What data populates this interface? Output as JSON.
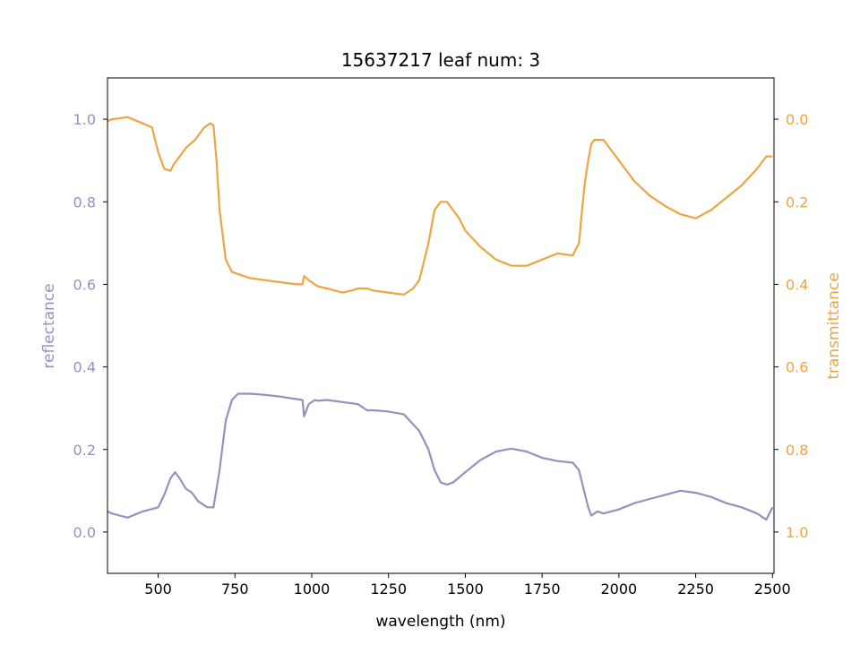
{
  "chart_data": {
    "type": "line",
    "title": "15637217 leaf num: 3",
    "xlabel": "wavelength (nm)",
    "ylabel_left": "reflectance",
    "ylabel_right": "transmittance",
    "xlim": [
      335,
      2505
    ],
    "ylim_left": [
      -0.1,
      1.1
    ],
    "ylim_right": [
      1.1,
      -0.1
    ],
    "right_axis_inverted": true,
    "grid": false,
    "x_ticks": [
      500,
      750,
      1000,
      1250,
      1500,
      1750,
      2000,
      2250,
      2500
    ],
    "y_ticks_left": [
      0.0,
      0.2,
      0.4,
      0.6,
      0.8,
      1.0
    ],
    "y_ticks_right": [
      0.0,
      0.2,
      0.4,
      0.6,
      0.8,
      1.0
    ],
    "colors": {
      "reflectance": "#9590c2",
      "transmittance": "#eda441"
    },
    "series": [
      {
        "key": "reflectance",
        "axis": "left",
        "x": [
          335,
          350,
          400,
          450,
          500,
          520,
          540,
          555,
          570,
          590,
          610,
          630,
          660,
          680,
          700,
          720,
          740,
          760,
          800,
          850,
          900,
          950,
          970,
          975,
          990,
          1010,
          1020,
          1050,
          1100,
          1150,
          1180,
          1200,
          1250,
          1300,
          1350,
          1380,
          1400,
          1420,
          1440,
          1460,
          1500,
          1550,
          1600,
          1650,
          1700,
          1750,
          1800,
          1850,
          1870,
          1880,
          1890,
          1900,
          1910,
          1930,
          1950,
          2000,
          2050,
          2100,
          2150,
          2200,
          2250,
          2300,
          2350,
          2400,
          2450,
          2480,
          2500
        ],
        "y": [
          0.05,
          0.045,
          0.035,
          0.05,
          0.06,
          0.09,
          0.13,
          0.145,
          0.13,
          0.105,
          0.095,
          0.075,
          0.06,
          0.06,
          0.15,
          0.27,
          0.32,
          0.335,
          0.335,
          0.332,
          0.328,
          0.322,
          0.32,
          0.28,
          0.31,
          0.32,
          0.318,
          0.32,
          0.315,
          0.31,
          0.295,
          0.295,
          0.292,
          0.285,
          0.245,
          0.2,
          0.15,
          0.12,
          0.115,
          0.12,
          0.145,
          0.175,
          0.195,
          0.202,
          0.195,
          0.18,
          0.172,
          0.168,
          0.15,
          0.12,
          0.09,
          0.06,
          0.04,
          0.05,
          0.045,
          0.055,
          0.07,
          0.08,
          0.09,
          0.1,
          0.095,
          0.085,
          0.07,
          0.06,
          0.045,
          0.03,
          0.06
        ]
      },
      {
        "key": "transmittance",
        "axis": "right",
        "x": [
          335,
          350,
          400,
          450,
          480,
          500,
          520,
          540,
          550,
          570,
          590,
          620,
          650,
          670,
          680,
          690,
          700,
          720,
          740,
          760,
          800,
          850,
          900,
          950,
          970,
          975,
          990,
          1010,
          1020,
          1050,
          1100,
          1130,
          1150,
          1180,
          1200,
          1250,
          1300,
          1330,
          1350,
          1380,
          1400,
          1420,
          1440,
          1460,
          1480,
          1500,
          1550,
          1600,
          1650,
          1700,
          1750,
          1800,
          1850,
          1870,
          1880,
          1890,
          1900,
          1910,
          1920,
          1950,
          2000,
          2050,
          2100,
          2150,
          2200,
          2250,
          2300,
          2350,
          2400,
          2450,
          2480,
          2500
        ],
        "y": [
          0.005,
          0.0,
          -0.005,
          0.01,
          0.02,
          0.08,
          0.12,
          0.125,
          0.11,
          0.09,
          0.07,
          0.05,
          0.02,
          0.01,
          0.015,
          0.1,
          0.22,
          0.34,
          0.37,
          0.375,
          0.385,
          0.39,
          0.395,
          0.4,
          0.4,
          0.38,
          0.39,
          0.4,
          0.405,
          0.41,
          0.42,
          0.415,
          0.41,
          0.41,
          0.415,
          0.42,
          0.425,
          0.41,
          0.39,
          0.3,
          0.22,
          0.2,
          0.2,
          0.22,
          0.24,
          0.27,
          0.31,
          0.34,
          0.355,
          0.355,
          0.34,
          0.325,
          0.33,
          0.3,
          0.22,
          0.15,
          0.1,
          0.06,
          0.05,
          0.05,
          0.1,
          0.15,
          0.185,
          0.21,
          0.23,
          0.24,
          0.22,
          0.19,
          0.16,
          0.12,
          0.09,
          0.09
        ]
      }
    ]
  }
}
